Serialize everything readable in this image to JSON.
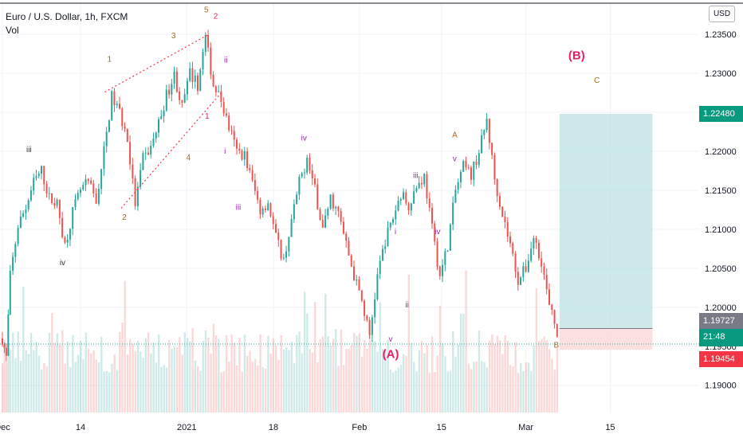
{
  "legend": {
    "title": "Euro / U.S. Dollar, 1h, FXCM",
    "indicator": "Vol"
  },
  "currency_button": "USD",
  "price_tags": {
    "current": "1.19727",
    "countdown": "21:48",
    "stop": "1.19454",
    "target": "1.22480"
  },
  "colors": {
    "up": "#26a69a",
    "down": "#ef5350",
    "target_zone": "#b2dfdb",
    "stop_zone": "#fcd9d9",
    "wave_pink": "#e91e63",
    "wave_brown": "#a86b1b",
    "wave_purple": "#9c27b0",
    "wave_dark": "#333333",
    "price_line": "#26a69a",
    "stop_tag": "#f23645",
    "target_tag": "#089981"
  },
  "chart_data": {
    "type": "candlestick",
    "symbol": "EURUSD",
    "timeframe": "1h",
    "y_axis": {
      "side": "right",
      "ylim": [
        1.1865,
        1.239
      ],
      "ticks": [
        "1.19000",
        "1.19500",
        "1.20000",
        "1.20500",
        "1.21000",
        "1.21500",
        "1.22000",
        "1.22500",
        "1.23000",
        "1.23500"
      ]
    },
    "x_axis": {
      "ticks": [
        "Dec",
        "14",
        "2021",
        "18",
        "Feb",
        "15",
        "Mar",
        "15"
      ]
    },
    "path": [
      [
        0,
        1.196
      ],
      [
        0.5,
        1.1935
      ],
      [
        1,
        1.204
      ],
      [
        2,
        1.2105
      ],
      [
        3,
        1.2128
      ],
      [
        4,
        1.216
      ],
      [
        5,
        1.2175
      ],
      [
        6,
        1.214
      ],
      [
        7,
        1.2132
      ],
      [
        8,
        1.208
      ],
      [
        9,
        1.2122
      ],
      [
        10,
        1.215
      ],
      [
        11,
        1.216
      ],
      [
        12,
        1.2135
      ],
      [
        13,
        1.22
      ],
      [
        14,
        1.227
      ],
      [
        15,
        1.225
      ],
      [
        16,
        1.2215
      ],
      [
        17,
        1.2132
      ],
      [
        18,
        1.219
      ],
      [
        19,
        1.2205
      ],
      [
        20,
        1.2236
      ],
      [
        21,
        1.2272
      ],
      [
        22,
        1.2298
      ],
      [
        23,
        1.2256
      ],
      [
        24,
        1.23
      ],
      [
        25,
        1.2285
      ],
      [
        26,
        1.2346
      ],
      [
        27,
        1.2285
      ],
      [
        28,
        1.2265
      ],
      [
        29,
        1.223
      ],
      [
        30,
        1.22
      ],
      [
        31,
        1.2195
      ],
      [
        32,
        1.216
      ],
      [
        33,
        1.2125
      ],
      [
        34,
        1.2135
      ],
      [
        35,
        1.209
      ],
      [
        36,
        1.206
      ],
      [
        37,
        1.211
      ],
      [
        38,
        1.216
      ],
      [
        39,
        1.219
      ],
      [
        40,
        1.215
      ],
      [
        41,
        1.21
      ],
      [
        42,
        1.214
      ],
      [
        43,
        1.212
      ],
      [
        44,
        1.208
      ],
      [
        45,
        1.204
      ],
      [
        46,
        1.2008
      ],
      [
        47,
        1.1963
      ],
      [
        48,
        1.204
      ],
      [
        49,
        1.2086
      ],
      [
        50,
        1.2115
      ],
      [
        51,
        1.2146
      ],
      [
        52,
        1.2132
      ],
      [
        53,
        1.2155
      ],
      [
        54,
        1.2168
      ],
      [
        55,
        1.21
      ],
      [
        56,
        1.204
      ],
      [
        57,
        1.208
      ],
      [
        58,
        1.215
      ],
      [
        59,
        1.218
      ],
      [
        60,
        1.217
      ],
      [
        61,
        1.22
      ],
      [
        62,
        1.224
      ],
      [
        63,
        1.2165
      ],
      [
        64,
        1.212
      ],
      [
        65,
        1.208
      ],
      [
        66,
        1.2035
      ],
      [
        67,
        1.205
      ],
      [
        68,
        1.209
      ],
      [
        69,
        1.206
      ],
      [
        70,
        1.2
      ],
      [
        71,
        1.1969
      ]
    ],
    "annotations": [
      {
        "label": "(B)",
        "x": 73.5,
        "y": 1.2318,
        "color": "wave_pink",
        "size": "large"
      },
      {
        "label": "(A)",
        "x": 49.7,
        "y": 1.1935,
        "color": "wave_pink",
        "size": "large"
      },
      {
        "label": "C",
        "x": 76.1,
        "y": 1.2288,
        "color": "wave_brown"
      },
      {
        "label": "A",
        "x": 57.9,
        "y": 1.2218,
        "color": "wave_brown"
      },
      {
        "label": "B",
        "x": 70.9,
        "y": 1.1948,
        "color": "wave_brown"
      },
      {
        "label": "1",
        "x": 13.7,
        "y": 1.2315,
        "color": "wave_brown"
      },
      {
        "label": "2",
        "x": 15.6,
        "y": 1.2112,
        "color": "wave_brown"
      },
      {
        "label": "3",
        "x": 21.9,
        "y": 1.2345,
        "color": "wave_brown"
      },
      {
        "label": "4",
        "x": 23.8,
        "y": 1.2189,
        "color": "wave_brown"
      },
      {
        "label": "5",
        "x": 26.1,
        "y": 1.2378,
        "color": "wave_brown"
      },
      {
        "label": "2",
        "x": 27.3,
        "y": 1.237,
        "color": "wave_pink"
      },
      {
        "label": "1",
        "x": 26.2,
        "y": 1.2242,
        "color": "wave_pink"
      },
      {
        "label": "ii",
        "x": 28.6,
        "y": 1.2314,
        "color": "wave_purple"
      },
      {
        "label": "i",
        "x": 28.5,
        "y": 1.2197,
        "color": "wave_purple"
      },
      {
        "label": "iii",
        "x": 30.2,
        "y": 1.2125,
        "color": "wave_purple"
      },
      {
        "label": "iv",
        "x": 38.6,
        "y": 1.2214,
        "color": "wave_purple"
      },
      {
        "label": "i",
        "x": 50.3,
        "y": 1.2094,
        "color": "wave_purple"
      },
      {
        "label": "ii",
        "x": 51.8,
        "y": 1.2,
        "color": "wave_purple"
      },
      {
        "label": "iii",
        "x": 52.9,
        "y": 1.2166,
        "color": "wave_purple"
      },
      {
        "label": "iv",
        "x": 55.7,
        "y": 1.2094,
        "color": "wave_purple"
      },
      {
        "label": "v",
        "x": 57.9,
        "y": 1.2187,
        "color": "wave_purple"
      },
      {
        "label": "v",
        "x": 49.7,
        "y": 1.1956,
        "color": "wave_purple"
      },
      {
        "label": "iii",
        "x": 3.4,
        "y": 1.2199,
        "color": "wave_dark"
      },
      {
        "label": "iv",
        "x": 7.7,
        "y": 1.2054,
        "color": "wave_dark"
      }
    ],
    "wedge_lines": [
      {
        "from": [
          13.1,
          1.2276
        ],
        "to": [
          26.4,
          1.235
        ]
      },
      {
        "from": [
          15.2,
          1.2127
        ],
        "to": [
          28.0,
          1.2275
        ]
      }
    ],
    "position": {
      "entry": 1.19727,
      "target": 1.2248,
      "stop": 1.19454,
      "x_start": 71,
      "x_end": 83
    },
    "volume": "visible"
  }
}
